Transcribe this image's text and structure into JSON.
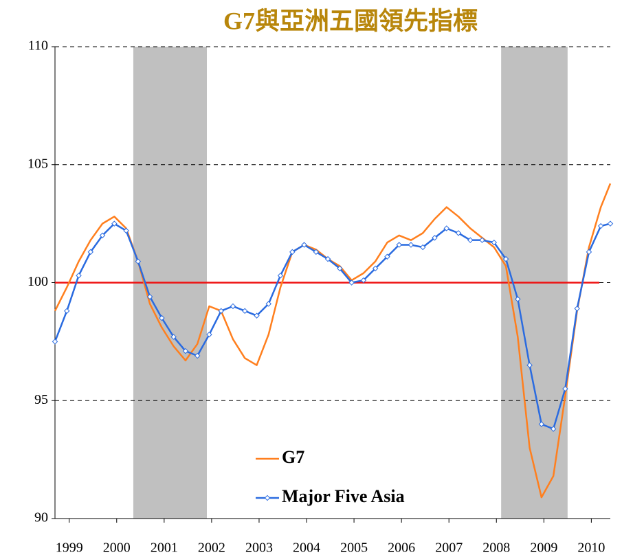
{
  "chart_data": {
    "type": "line",
    "title": "G7與亞洲五國領先指標",
    "x": [
      1999.2,
      1999.45,
      1999.7,
      1999.95,
      2000.2,
      2000.45,
      2000.7,
      2000.95,
      2001.2,
      2001.45,
      2001.7,
      2001.95,
      2002.2,
      2002.45,
      2002.7,
      2002.95,
      2003.2,
      2003.45,
      2003.7,
      2003.95,
      2004.2,
      2004.45,
      2004.7,
      2004.95,
      2005.2,
      2005.45,
      2005.7,
      2005.95,
      2006.2,
      2006.45,
      2006.7,
      2006.95,
      2007.2,
      2007.45,
      2007.7,
      2007.95,
      2008.2,
      2008.45,
      2008.7,
      2008.95,
      2009.2,
      2009.45,
      2009.7,
      2009.95,
      2010.2,
      2010.45,
      2010.7,
      2010.9
    ],
    "series": [
      {
        "name": "G7",
        "color": "#ff7f1e",
        "marker": false,
        "values": [
          98.8,
          99.8,
          100.9,
          101.8,
          102.5,
          102.8,
          102.3,
          100.9,
          99.1,
          98.1,
          97.3,
          96.7,
          97.4,
          99.0,
          98.8,
          97.6,
          96.8,
          96.5,
          97.8,
          99.8,
          101.3,
          101.6,
          101.4,
          101.0,
          100.7,
          100.1,
          100.4,
          100.9,
          101.7,
          102.0,
          101.8,
          102.1,
          102.7,
          103.2,
          102.8,
          102.3,
          101.9,
          101.5,
          100.7,
          97.7,
          93.0,
          90.9,
          91.8,
          95.2,
          98.8,
          101.5,
          103.2,
          104.2
        ]
      },
      {
        "name": "Major Five Asia",
        "color": "#2a6be0",
        "marker": true,
        "values": [
          97.5,
          98.8,
          100.3,
          101.3,
          102.0,
          102.5,
          102.2,
          100.9,
          99.4,
          98.5,
          97.7,
          97.1,
          96.9,
          97.8,
          98.8,
          99.0,
          98.8,
          98.6,
          99.1,
          100.3,
          101.3,
          101.6,
          101.3,
          101.0,
          100.6,
          100.0,
          100.1,
          100.6,
          101.1,
          101.6,
          101.6,
          101.5,
          101.9,
          102.3,
          102.1,
          101.8,
          101.8,
          101.7,
          101.0,
          99.3,
          96.5,
          94.0,
          93.8,
          95.5,
          98.9,
          101.3,
          102.4,
          102.5
        ]
      }
    ],
    "xlim": [
      1999.2,
      2010.9
    ],
    "xticks": [
      {
        "value": 1999.5,
        "label": "1999"
      },
      {
        "value": 2000.5,
        "label": "2000"
      },
      {
        "value": 2001.5,
        "label": "2001"
      },
      {
        "value": 2002.5,
        "label": "2002"
      },
      {
        "value": 2003.5,
        "label": "2003"
      },
      {
        "value": 2004.5,
        "label": "2004"
      },
      {
        "value": 2005.5,
        "label": "2005"
      },
      {
        "value": 2006.5,
        "label": "2006"
      },
      {
        "value": 2007.5,
        "label": "2007"
      },
      {
        "value": 2008.5,
        "label": "2008"
      },
      {
        "value": 2009.5,
        "label": "2009"
      },
      {
        "value": 2010.5,
        "label": "2010"
      }
    ],
    "ylim": [
      90,
      110
    ],
    "yticks": [
      90,
      95,
      100,
      105,
      110
    ],
    "grid": true,
    "reference_line": {
      "value": 100,
      "color": "#ee1111"
    },
    "shaded_regions": [
      [
        2000.85,
        2002.4
      ],
      [
        2008.6,
        2010.0
      ]
    ],
    "shade_color": "#c0c0c0"
  }
}
